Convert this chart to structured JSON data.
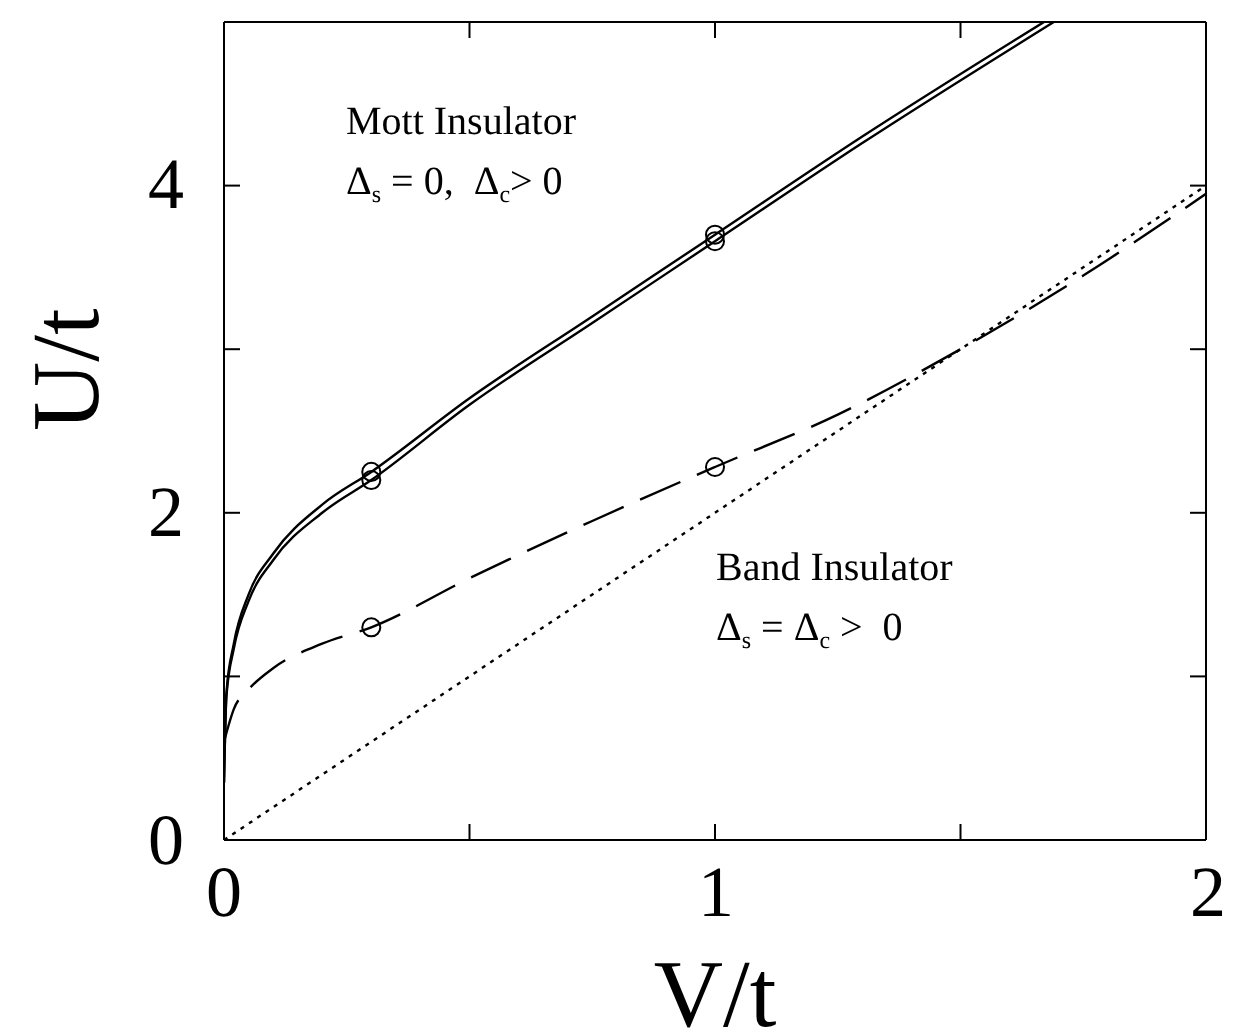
{
  "chart_data": {
    "type": "line",
    "xlabel": "V/t",
    "ylabel": "U/t",
    "xlim": [
      0,
      2
    ],
    "ylim": [
      0,
      5
    ],
    "xticks": [
      0,
      {
        "value": 0.5,
        "label": null
      },
      1,
      {
        "value": 1.5,
        "label": null
      },
      2
    ],
    "yticks": [
      0,
      {
        "value": 1,
        "label": null
      },
      2,
      {
        "value": 3,
        "label": null
      },
      4
    ],
    "grid": false,
    "legend": false,
    "annotations": [
      "Mott Insulator",
      "Δ$_{s}$ = 0,  Δ$_{c}$> 0",
      "Band Insulator",
      "Δ$_{s}$ = Δ$_{c}$ >  0"
    ],
    "series": [
      {
        "type": "line",
        "color": "#000000",
        "line_style": "solid",
        "marker": "none",
        "x": [
          0,
          0.005,
          0.02,
          0.05,
          0.1,
          0.2,
          0.3,
          0.5,
          0.75,
          1,
          1.3,
          1.67
        ],
        "values": [
          0.35,
          0.9,
          1.2,
          1.5,
          1.75,
          2.05,
          2.25,
          2.7,
          3.2,
          3.7,
          4.3,
          5.0
        ]
      },
      {
        "type": "line",
        "color": "#000000",
        "line_style": "solid",
        "marker": "none",
        "x": [
          0,
          0.005,
          0.02,
          0.05,
          0.1,
          0.2,
          0.3,
          0.5,
          0.75,
          1,
          1.3,
          1.69
        ],
        "values": [
          0.35,
          0.88,
          1.17,
          1.46,
          1.71,
          2.0,
          2.2,
          2.66,
          3.16,
          3.66,
          4.26,
          5.0
        ]
      },
      {
        "type": "line",
        "color": "#000000",
        "line_style": "dashed",
        "marker": "none",
        "x": [
          0,
          0.02,
          0.05,
          0.1,
          0.2,
          0.3,
          0.5,
          0.75,
          1,
          1.25,
          1.5,
          1.75,
          2
        ],
        "values": [
          0.6,
          0.8,
          0.92,
          1.05,
          1.2,
          1.3,
          1.6,
          1.95,
          2.28,
          2.6,
          3.0,
          3.45,
          3.95
        ]
      },
      {
        "type": "line",
        "color": "#000000",
        "line_style": "dotted",
        "marker": "none",
        "x": [
          0,
          2
        ],
        "values": [
          0,
          4
        ]
      },
      {
        "type": "scatter",
        "color": "#000000",
        "marker": "circle",
        "x": [
          0.3,
          0.3,
          1,
          1,
          0.3,
          1
        ],
        "values": [
          2.25,
          2.2,
          3.7,
          3.66,
          1.3,
          2.28
        ]
      }
    ]
  }
}
